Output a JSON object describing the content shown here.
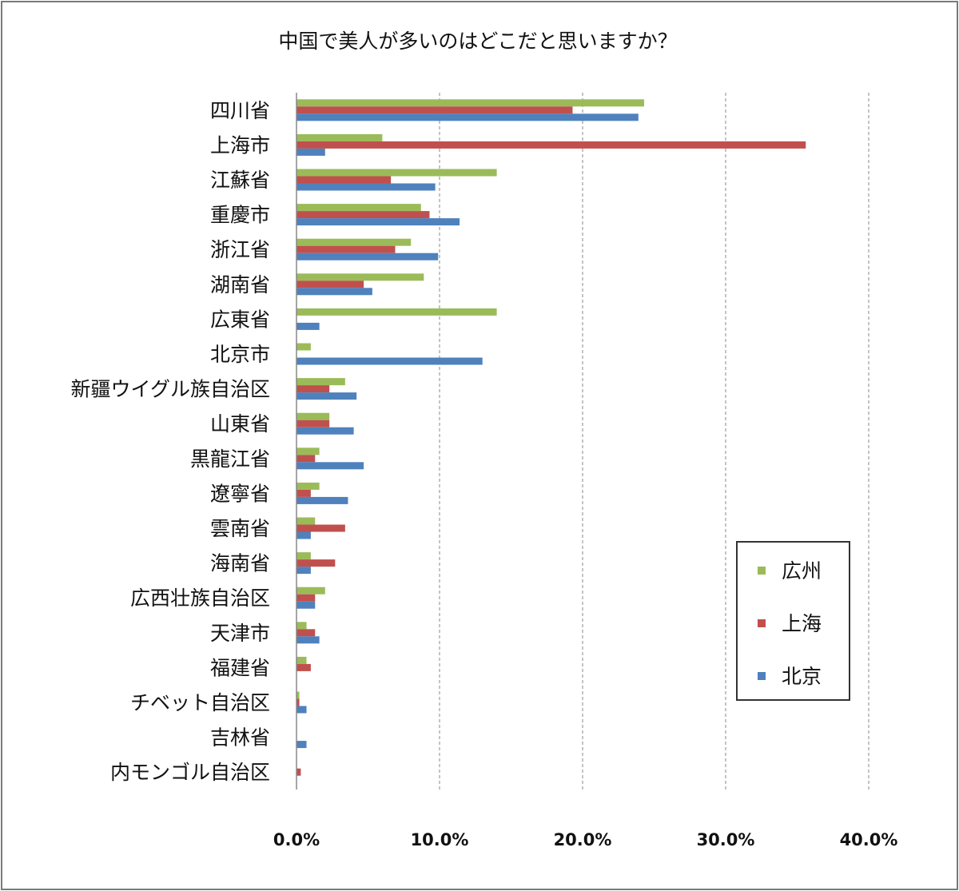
{
  "chart_data": {
    "type": "bar",
    "orientation": "horizontal",
    "title": "中国で美人が多いのはどこだと思いますか？",
    "xlabel": "",
    "ylabel": "",
    "xlim": [
      0,
      40
    ],
    "xticks": [
      "0.0%",
      "10.0%",
      "20.0%",
      "30.0%",
      "40.0%"
    ],
    "grid": "vertical dashed",
    "legend_position": "right",
    "categories": [
      "四川省",
      "上海市",
      "江蘇省",
      "重慶市",
      "浙江省",
      "湖南省",
      "広東省",
      "北京市",
      "新疆ウイグル族自治区",
      "山東省",
      "黒龍江省",
      "遼寧省",
      "雲南省",
      "海南省",
      "広西壮族自治区",
      "天津市",
      "福建省",
      "チベット自治区",
      "吉林省",
      "内モンゴル自治区"
    ],
    "series": [
      {
        "name": "広州",
        "color": "#9bbb59",
        "values": [
          24.3,
          6.0,
          14.0,
          8.7,
          8.0,
          8.9,
          14.0,
          1.0,
          3.4,
          2.3,
          1.6,
          1.6,
          1.3,
          1.0,
          2.0,
          0.7,
          0.7,
          0.2,
          0,
          0
        ]
      },
      {
        "name": "上海",
        "color": "#c0504d",
        "values": [
          19.3,
          35.6,
          6.6,
          9.3,
          6.9,
          4.7,
          0,
          0,
          2.3,
          2.3,
          1.3,
          1.0,
          3.4,
          2.7,
          1.3,
          1.3,
          1.0,
          0.2,
          0,
          0.3
        ]
      },
      {
        "name": "北京",
        "color": "#4f81bd",
        "values": [
          23.9,
          2.0,
          9.7,
          11.4,
          9.9,
          5.3,
          1.6,
          13.0,
          4.2,
          4.0,
          4.7,
          3.6,
          1.0,
          1.0,
          1.3,
          1.6,
          0,
          0.7,
          0.7,
          0
        ]
      }
    ]
  }
}
